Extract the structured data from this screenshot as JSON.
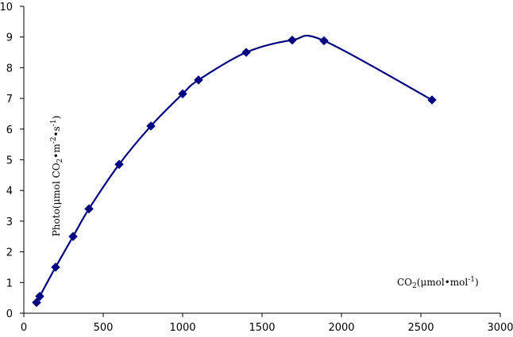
{
  "chart_data": {
    "type": "line",
    "title": "",
    "xlabel": "",
    "ylabel": "",
    "xlim": [
      0,
      3000
    ],
    "ylim": [
      0,
      10
    ],
    "x_ticks": [
      0,
      500,
      1000,
      1500,
      2000,
      2500,
      3000
    ],
    "y_ticks": [
      0,
      1,
      2,
      3,
      4,
      5,
      6,
      7,
      8,
      9,
      10
    ],
    "grid": false,
    "legend": "none",
    "annotations": {
      "ylabel_prefix": "Photo(μmol CO",
      "ylabel_sub1": "2",
      "ylabel_mid": "•m",
      "ylabel_sup1": "-2",
      "ylabel_mid2": "•s",
      "ylabel_sup2": "-1",
      "ylabel_suffix": ")",
      "xlabel_prefix": "CO",
      "xlabel_sub": "2",
      "xlabel_mid": "(μmol•mol",
      "xlabel_sup": "-1",
      "xlabel_suffix": ")"
    },
    "series": [
      {
        "color": "#000080",
        "marker": "diamond",
        "x": [
          80,
          100,
          200,
          310,
          410,
          600,
          800,
          1000,
          1100,
          1400,
          1690,
          1890,
          2570
        ],
        "y": [
          0.35,
          0.55,
          1.5,
          2.5,
          3.4,
          4.85,
          6.1,
          7.15,
          7.6,
          8.5,
          8.9,
          8.88,
          6.95
        ]
      }
    ]
  }
}
